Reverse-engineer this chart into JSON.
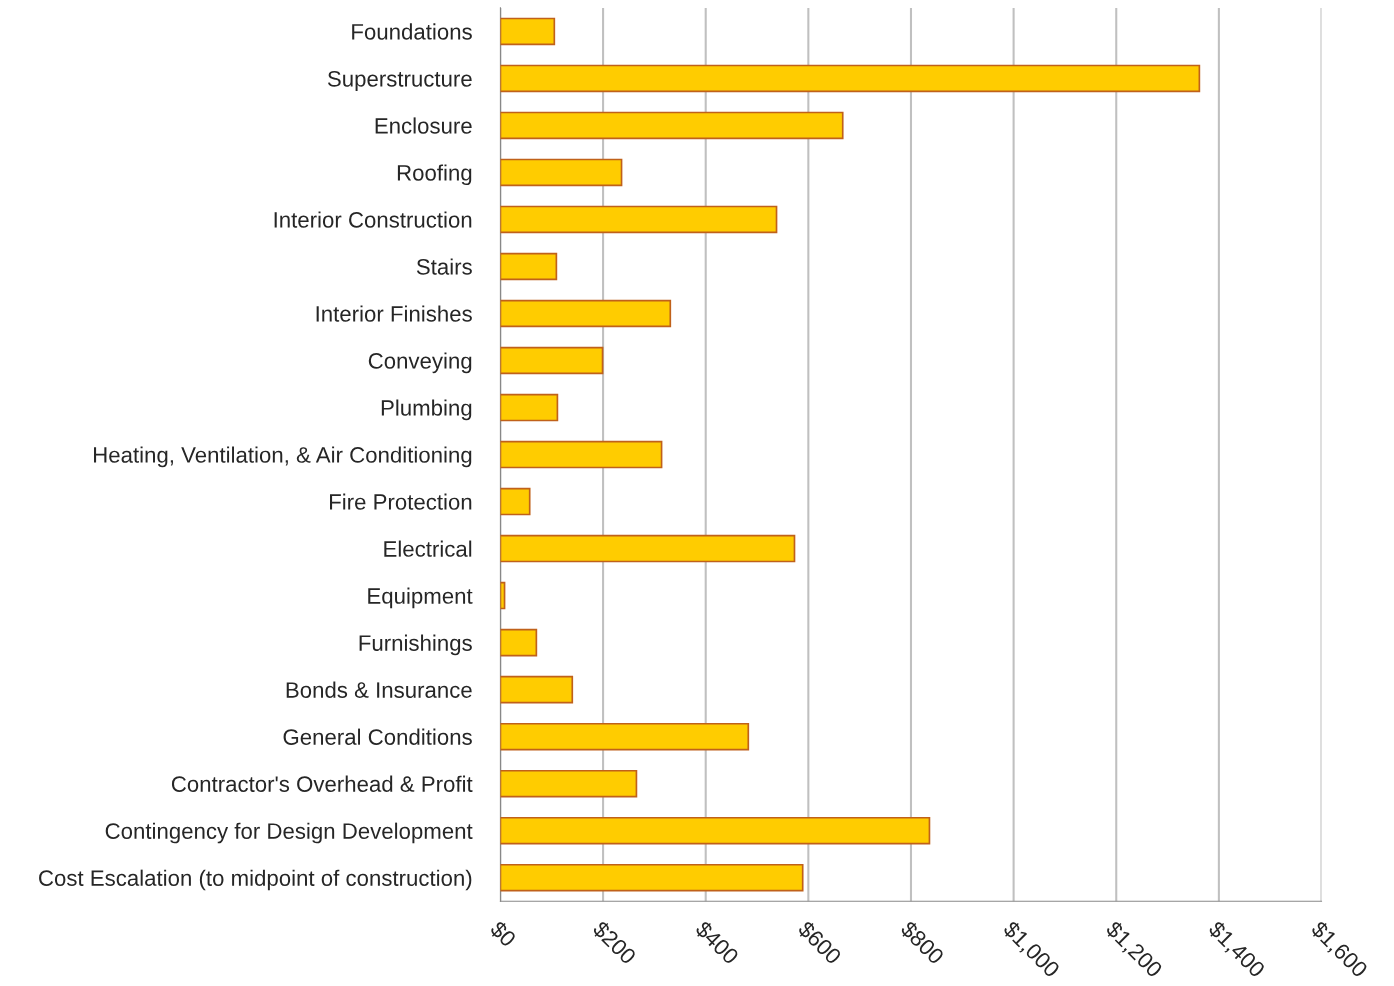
{
  "chart_data": {
    "type": "bar",
    "orientation": "horizontal",
    "categories": [
      "Foundations",
      "Superstructure",
      "Enclosure",
      "Roofing",
      "Interior Construction",
      "Stairs",
      "Interior Finishes",
      "Conveying",
      "Plumbing",
      "Heating, Ventilation, & Air Conditioning",
      "Fire Protection",
      "Electrical",
      "Equipment",
      "Furnishings",
      "Bonds & Insurance",
      "General Conditions",
      "Contractor's Overhead & Profit",
      "Contingency for Design Development",
      "Cost Escalation (to midpoint of construction)"
    ],
    "values": [
      105,
      1362,
      667,
      236,
      538,
      109,
      331,
      199,
      111,
      314,
      57,
      573,
      8,
      70,
      140,
      483,
      265,
      836,
      589
    ],
    "color": "#ffcc00",
    "xlim": [
      0,
      1600
    ],
    "xticks": [
      {
        "value": 0,
        "label": "$0"
      },
      {
        "value": 200,
        "label": "$200"
      },
      {
        "value": 400,
        "label": "$400"
      },
      {
        "value": 600,
        "label": "$600"
      },
      {
        "value": 800,
        "label": "$800"
      },
      {
        "value": 1000,
        "label": "$1,000"
      },
      {
        "value": 1200,
        "label": "$1,200"
      },
      {
        "value": 1400,
        "label": "$1,400"
      },
      {
        "value": 1600,
        "label": "$1,600"
      }
    ],
    "grid": "x"
  }
}
